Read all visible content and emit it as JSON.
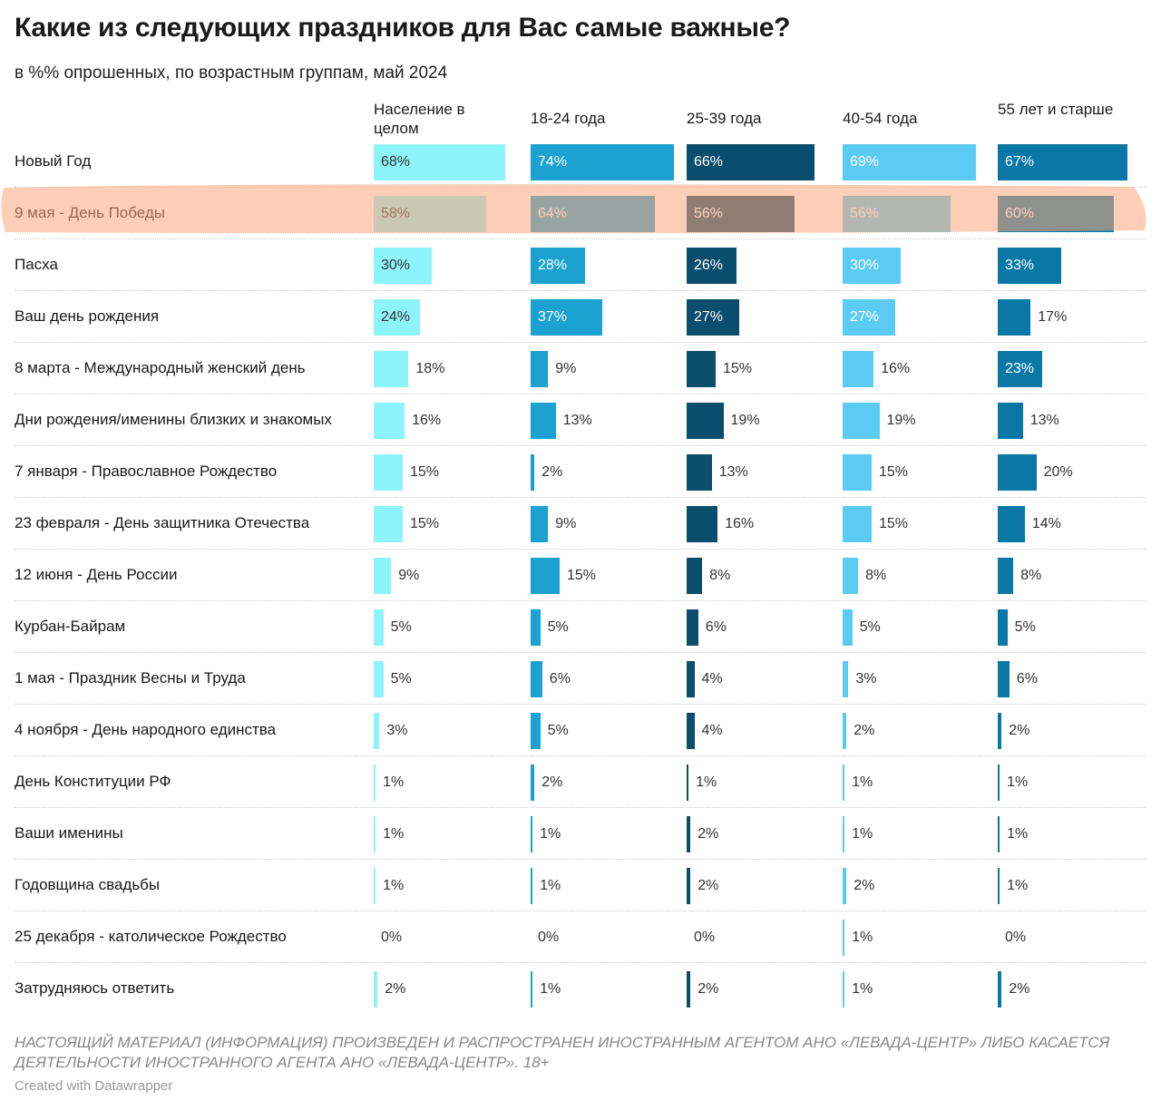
{
  "chart_data": {
    "type": "bar",
    "title": "Какие из следующих праздников для Вас самые важные?",
    "subtitle": "в %% опрошенных, по возрастным группам, май 2024",
    "categories": [
      "Новый Год",
      "9 мая - День Победы",
      "Пасха",
      "Ваш день рождения",
      "8 марта - Международный женский день",
      "Дни рождения/именины близких и знакомых",
      "7 января - Православное Рождество",
      "23 февраля - День защитника Отечества",
      "12 июня - День России",
      "Курбан-Байрам",
      "1 мая - Праздник Весны и Труда",
      "4 ноября - День народного единства",
      "День Конституции РФ",
      "Ваши именины",
      "Годовщина свадьбы",
      "25 декабря - католическое Рождество",
      "Затрудняюсь ответить"
    ],
    "xlim": [
      0,
      75
    ],
    "series": [
      {
        "name": "Население в целом",
        "color": "#8ef4fb",
        "values": [
          68,
          58,
          30,
          24,
          18,
          16,
          15,
          15,
          9,
          5,
          5,
          3,
          1,
          1,
          1,
          0,
          2
        ],
        "value_labels": [
          "68%",
          "58%",
          "30%",
          "24%",
          "18%",
          "16%",
          "15%",
          "15%",
          "9%",
          "5%",
          "5%",
          "3%",
          "1%",
          "1%",
          "1%",
          "0%",
          "2%"
        ]
      },
      {
        "name": "18-24 года",
        "color": "#1ba2d1",
        "values": [
          74,
          64,
          28,
          37,
          9,
          13,
          2,
          9,
          15,
          5,
          6,
          5,
          2,
          1,
          1,
          0,
          1
        ],
        "value_labels": [
          "74%",
          "64%",
          "28%",
          "37%",
          "9%",
          "13%",
          "2%",
          "9%",
          "15%",
          "5%",
          "6%",
          "5%",
          "2%",
          "1%",
          "1%",
          "0%",
          "1%"
        ]
      },
      {
        "name": "25-39 года",
        "color": "#0b4d6c",
        "values": [
          66,
          56,
          26,
          27,
          15,
          19,
          13,
          16,
          8,
          6,
          4,
          4,
          1,
          2,
          2,
          0,
          2
        ],
        "value_labels": [
          "66%",
          "56%",
          "26%",
          "27%",
          "15%",
          "19%",
          "13%",
          "16%",
          "8%",
          "6%",
          "4%",
          "4%",
          "1%",
          "2%",
          "2%",
          "0%",
          "2%"
        ]
      },
      {
        "name": "40-54 года",
        "color": "#5ccbf4",
        "values": [
          69,
          56,
          30,
          27,
          16,
          19,
          15,
          15,
          8,
          5,
          3,
          2,
          1,
          1,
          2,
          1,
          1
        ],
        "value_labels": [
          "69%",
          "56%",
          "30%",
          "27%",
          "16%",
          "19%",
          "15%",
          "15%",
          "8%",
          "5%",
          "3%",
          "2%",
          "1%",
          "1%",
          "2%",
          "1%",
          "1%"
        ]
      },
      {
        "name": "55 лет и старше",
        "color": "#0a78a6",
        "values": [
          67,
          60,
          33,
          17,
          23,
          13,
          20,
          14,
          8,
          5,
          6,
          2,
          1,
          1,
          1,
          0,
          2
        ],
        "value_labels": [
          "67%",
          "60%",
          "33%",
          "17%",
          "23%",
          "13%",
          "20%",
          "14%",
          "8%",
          "5%",
          "6%",
          "2%",
          "1%",
          "1%",
          "1%",
          "0%",
          "2%"
        ]
      }
    ],
    "disclaimer": "НАСТОЯЩИЙ МАТЕРИАЛ (ИНФОРМАЦИЯ) ПРОИЗВЕДЕН И РАСПРОСТРАНЕН ИНОСТРАННЫМ АГЕНТОМ АНО «ЛЕВАДА-ЦЕНТР» ЛИБО КАСАЕТСЯ ДЕЯТЕЛЬНОСТИ ИНОСТРАННОГО АГЕНТА АНО «ЛЕВАДА-ЦЕНТР». 18+",
    "credit": "Created with Datawrapper"
  }
}
